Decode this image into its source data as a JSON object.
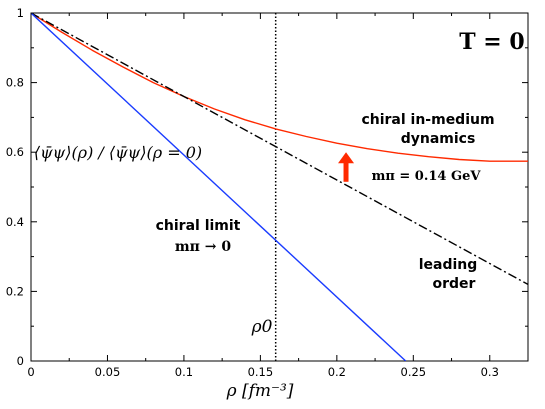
{
  "chart_data": {
    "type": "line",
    "title": "T = 0",
    "xlabel": "ρ [fm⁻³]",
    "ylabel": "⟨ψ̄ψ⟩(ρ) / ⟨ψ̄ψ⟩(ρ = 0)",
    "xlim": [
      0,
      0.325
    ],
    "ylim": [
      0,
      1
    ],
    "grid": false,
    "x_ticks": [
      "0",
      "0.05",
      "0.1",
      "0.15",
      "0.2",
      "0.25",
      "0.3"
    ],
    "y_ticks": [
      "0",
      "0.2",
      "0.4",
      "0.6",
      "0.8",
      "1"
    ],
    "series": [
      {
        "name": "chiral in-medium dynamics",
        "color": "#ff2a00",
        "style": "solid",
        "x": [
          0,
          0.02,
          0.04,
          0.06,
          0.08,
          0.1,
          0.12,
          0.14,
          0.16,
          0.18,
          0.2,
          0.22,
          0.24,
          0.26,
          0.28,
          0.3,
          0.325
        ],
        "y": [
          1.0,
          0.945,
          0.893,
          0.845,
          0.8,
          0.76,
          0.724,
          0.693,
          0.667,
          0.645,
          0.626,
          0.61,
          0.597,
          0.587,
          0.579,
          0.574,
          0.574
        ]
      },
      {
        "name": "leading order",
        "color": "#000000",
        "style": "dashdot",
        "x": [
          0,
          0.325
        ],
        "y": [
          1.0,
          0.22
        ]
      },
      {
        "name": "chiral limit",
        "color": "#1a3cff",
        "style": "solid",
        "x": [
          0,
          0.245
        ],
        "y": [
          1.0,
          0.0
        ]
      }
    ],
    "vline": {
      "x": 0.16,
      "label": "ρ0",
      "style": "dotted"
    },
    "annotations": {
      "chiral_in_medium_line1": "chiral in-medium",
      "chiral_in_medium_line2": "dynamics",
      "mpi_phys": "mπ = 0.14 GeV",
      "chiral_limit": "chiral limit",
      "mpi_zero": "mπ → 0",
      "leading_line1": "leading",
      "leading_line2": "order"
    },
    "arrow": {
      "color": "#ff2a00",
      "x": 0.206,
      "y_from": 0.515,
      "y_to": 0.6
    }
  }
}
